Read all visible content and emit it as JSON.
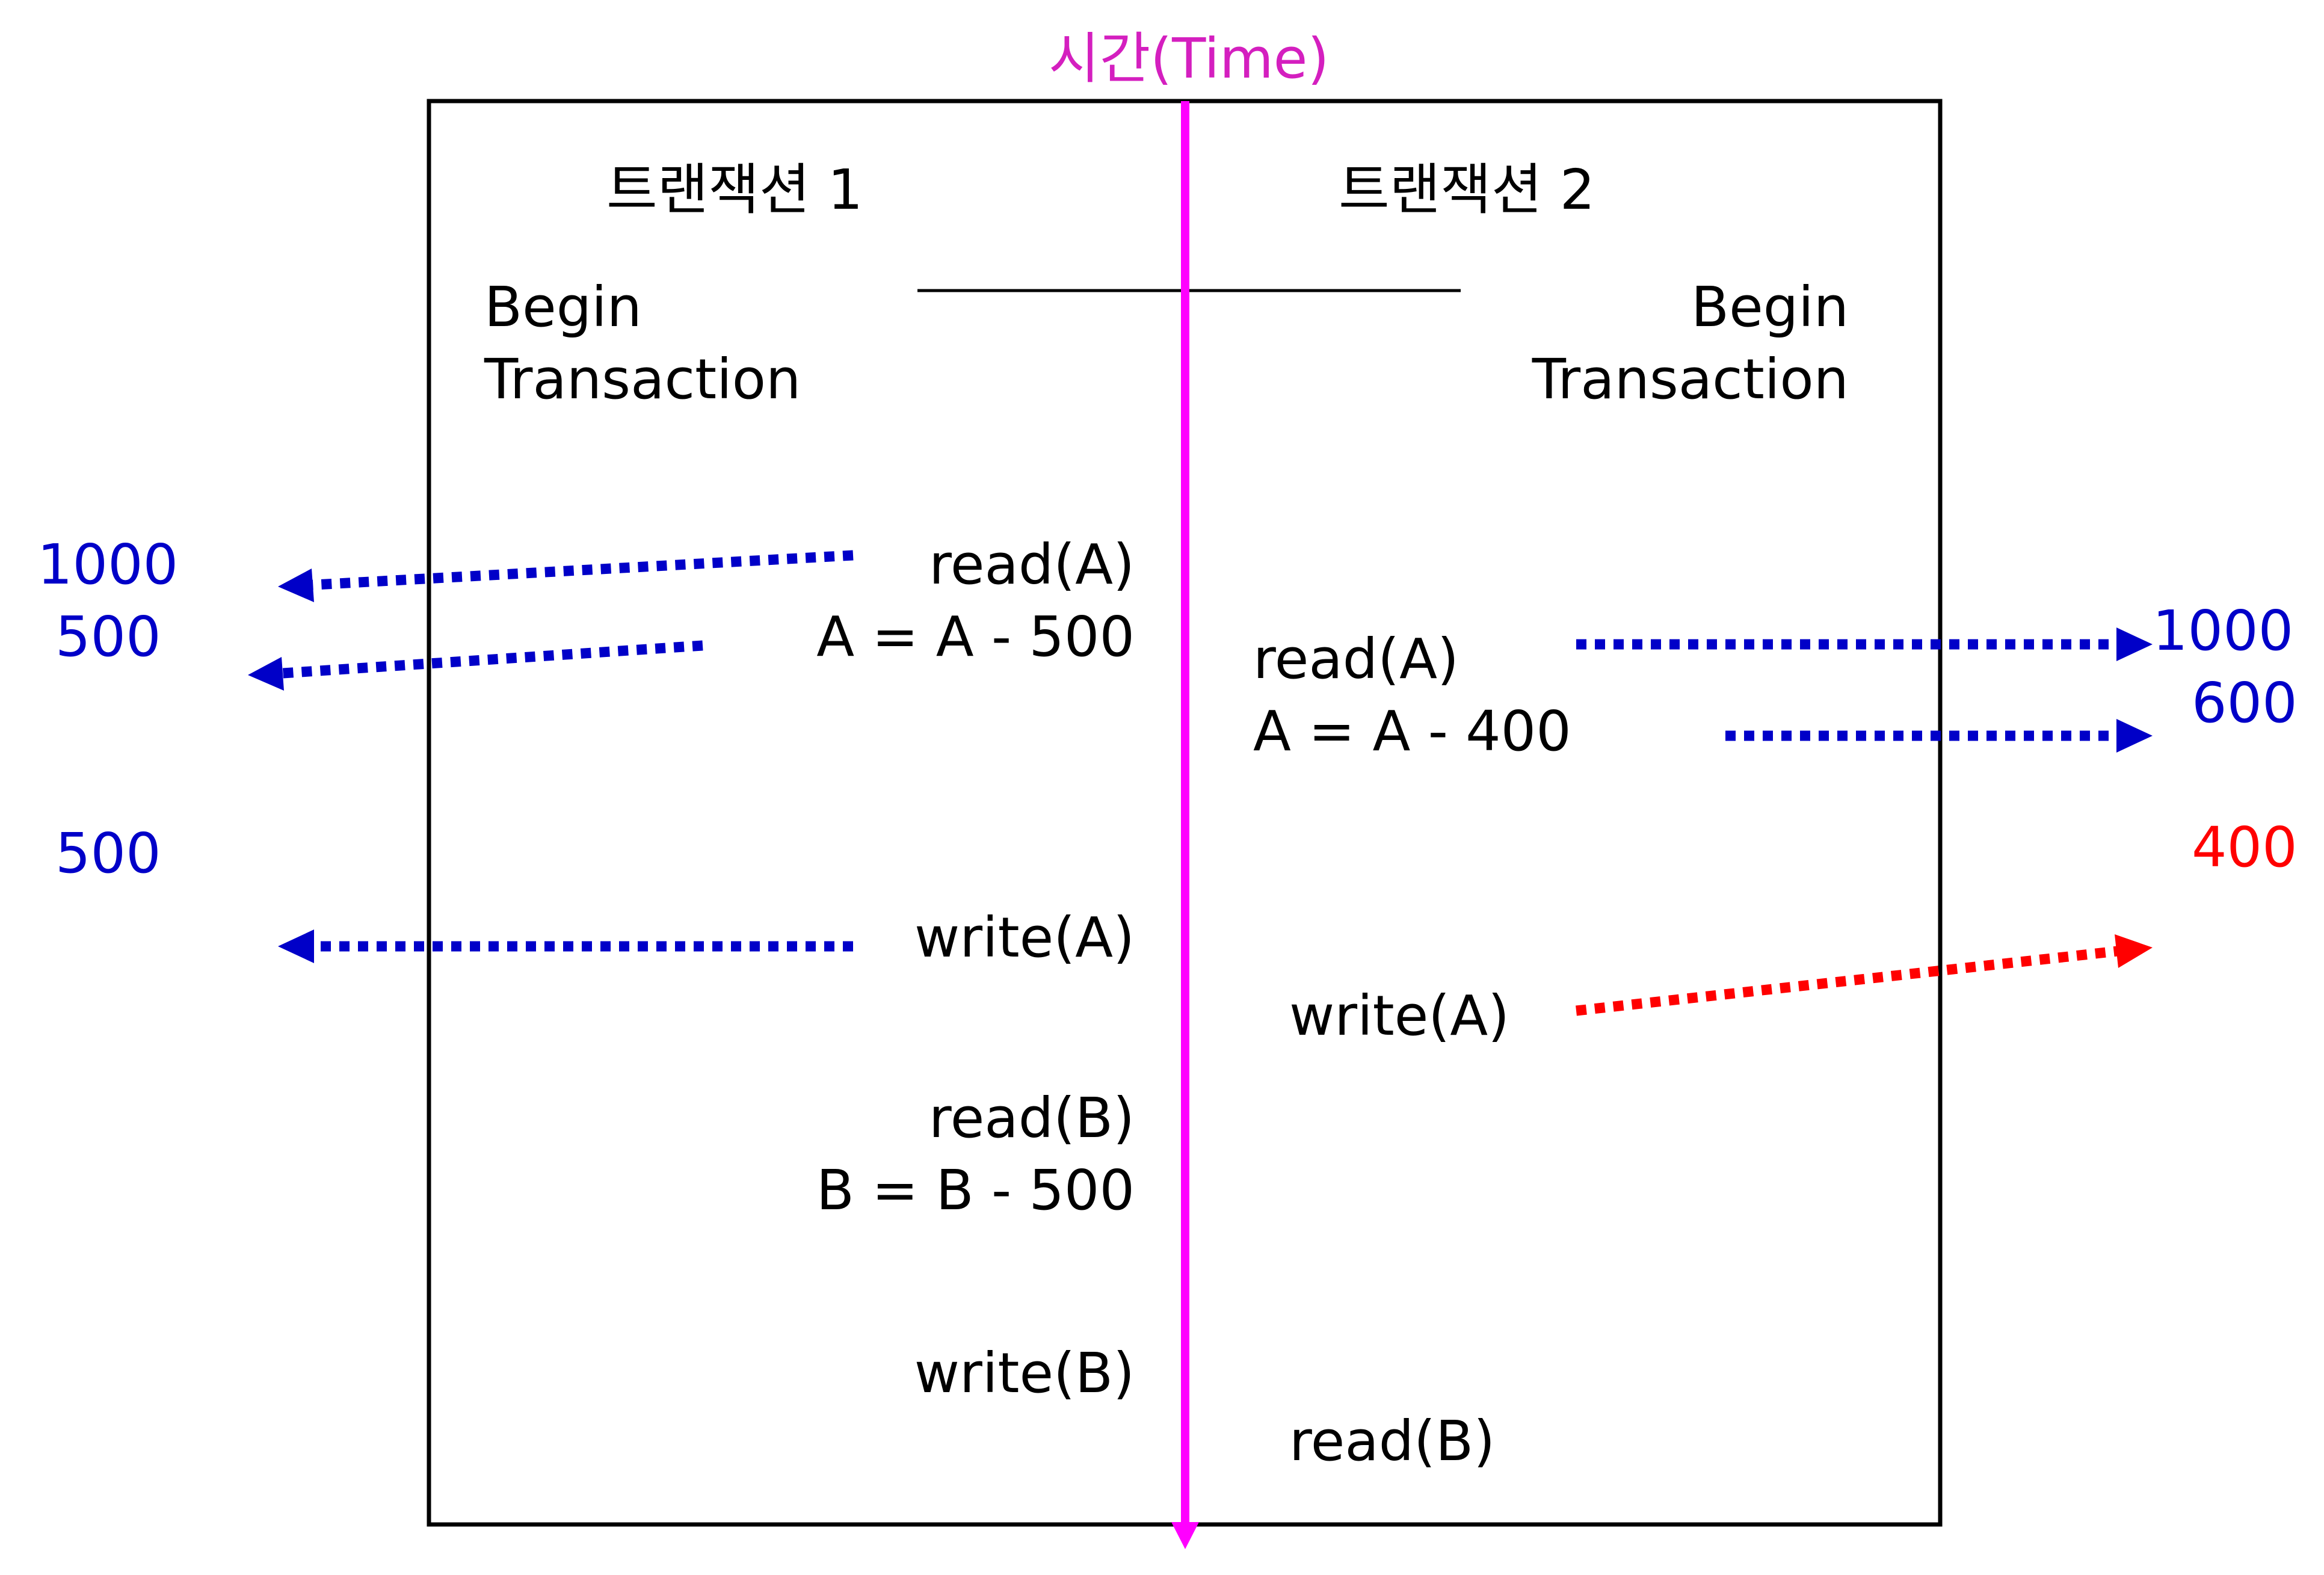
{
  "time_label": "시간(Time)",
  "colors": {
    "timeline": "#ff00ff",
    "time_label": "#d41fbf",
    "value_blue": "#0000c8",
    "value_red": "#ff0000",
    "frame": "#000000"
  },
  "transaction1": {
    "title": "트랜잭션 1",
    "begin_line1": "Begin",
    "begin_line2": "Transaction",
    "steps": [
      "read(A)",
      "A = A - 500",
      "write(A)",
      "read(B)",
      "B = B - 500",
      "write(B)"
    ]
  },
  "transaction2": {
    "title": "트랜잭션 2",
    "begin_line1": "Begin",
    "begin_line2": "Transaction",
    "steps": [
      "read(A)",
      "A = A - 400",
      "write(A)",
      "read(B)"
    ]
  },
  "values_left": [
    "1000",
    "500",
    "500"
  ],
  "values_right": [
    "1000",
    "600",
    "400"
  ]
}
